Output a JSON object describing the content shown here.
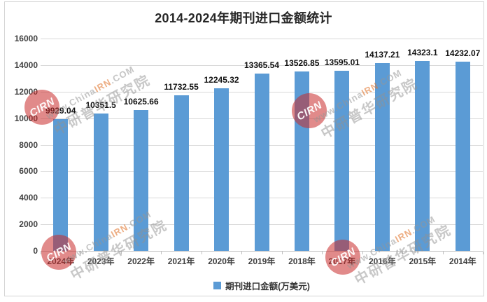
{
  "chart_data": {
    "type": "bar",
    "title": "2014-2024年期刊进口金额统计",
    "categories": [
      "2024年",
      "2023年",
      "2022年",
      "2021年",
      "2020年",
      "2019年",
      "2018年",
      "2017年",
      "2016年",
      "2015年",
      "2014年"
    ],
    "values": [
      9929.04,
      10351.5,
      10625.66,
      11732.55,
      12245.32,
      13365.54,
      13526.85,
      13595.01,
      14137.21,
      14323.1,
      14232.07
    ],
    "value_labels": [
      "9929.04",
      "10351.5",
      "10625.66",
      "11732.55",
      "12245.32",
      "13365.54",
      "13526.85",
      "13595.01",
      "14137.21",
      "14323.1",
      "14232.07"
    ],
    "series_name": "期刊进口金额(万美元)",
    "xlabel": "",
    "ylabel": "",
    "ylim": [
      0,
      16000
    ],
    "yticks": [
      0,
      2000,
      4000,
      6000,
      8000,
      10000,
      12000,
      14000,
      16000
    ],
    "grid": true,
    "legend_position": "bottom",
    "bar_color": "#5B9BD5"
  },
  "legend": {
    "label": "期刊进口金额(万美元)"
  },
  "watermark": {
    "logo_text": "CIRN",
    "url_prefix": "www.China",
    "url_highlight": "IRN",
    "url_suffix": ".COM",
    "org_text": "中研普华研究院"
  },
  "colors": {
    "bar": "#5B9BD5",
    "gridline": "#D9D9D9",
    "axis_line": "#BFBFBF",
    "title_text": "#262626",
    "axis_text": "#404040",
    "watermark_red": "#C92A2A",
    "watermark_yellow": "#FFD03C"
  }
}
